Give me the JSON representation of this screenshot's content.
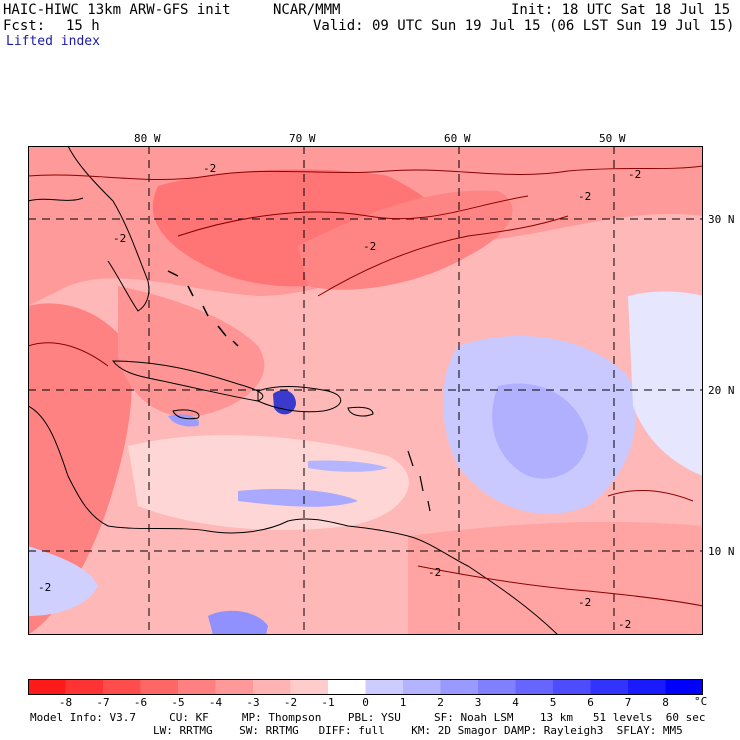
{
  "header": {
    "model_title": "HAIC-HIWC 13km ARW-GFS init",
    "org": "NCAR/MMM",
    "init": "Init: 18 UTC Sat 18 Jul 15",
    "fcst_label": "Fcst:",
    "fcst_value": "15 h",
    "valid": "Valid: 09 UTC Sun 19 Jul 15 (06 LST Sun 19 Jul 15)",
    "field": "Lifted index"
  },
  "map": {
    "lon_labels": [
      "80 W",
      "70 W",
      "60 W",
      "50 W"
    ],
    "lat_labels": [
      "30 N",
      "20 N",
      "10 N"
    ],
    "contour_label": "-2",
    "colors": {
      "land_outline": "#000000",
      "gridline": "#000000",
      "contour": "#8b0000"
    }
  },
  "colorbar": {
    "ticks": [
      "-8",
      "-7",
      "-6",
      "-5",
      "-4",
      "-3",
      "-2",
      "-1",
      "0",
      "1",
      "2",
      "3",
      "4",
      "5",
      "6",
      "7",
      "8"
    ],
    "unit": "°C",
    "colors": [
      "#ff1a1a",
      "#ff3333",
      "#ff4d4d",
      "#ff6666",
      "#ff8080",
      "#ff9999",
      "#ffb3b3",
      "#ffcccc",
      "#ffffff",
      "#ccccff",
      "#b3b3ff",
      "#9999ff",
      "#8080ff",
      "#6666ff",
      "#4d4dff",
      "#3333ff",
      "#1a1aff",
      "#0000ff"
    ]
  },
  "footer": {
    "line1": "Model Info: V3.7     CU: KF     MP: Thompson    PBL: YSU     SF: Noah LSM    13 km   51 levels  60 sec",
    "line2": "LW: RRTMG    SW: RRTMG   DIFF: full    KM: 2D Smagor DAMP: Rayleigh3  SFLAY: MM5"
  }
}
